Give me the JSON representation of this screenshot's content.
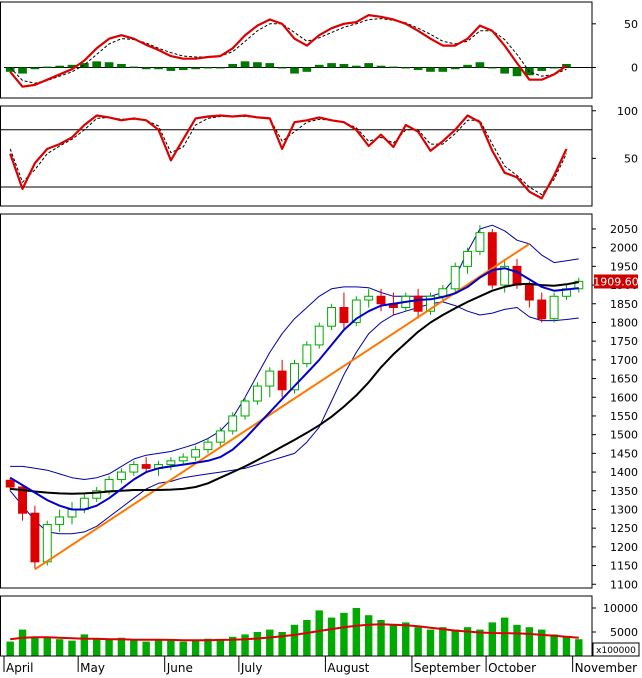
{
  "chart_data": [
    {
      "type": "line",
      "panel": "macd",
      "ylim": [
        -35,
        75
      ],
      "ticks": [
        "50",
        "0"
      ],
      "tick_values": [
        50,
        0
      ],
      "series": [
        {
          "role": "macd",
          "color": "#dd0000",
          "values": [
            -5,
            -22,
            -20,
            -14,
            -8,
            -2,
            8,
            22,
            33,
            37,
            33,
            26,
            20,
            13,
            10,
            10,
            12,
            13,
            22,
            37,
            48,
            55,
            50,
            33,
            25,
            37,
            45,
            50,
            52,
            60,
            58,
            55,
            50,
            42,
            33,
            25,
            25,
            33,
            48,
            42,
            25,
            5,
            -14,
            -14,
            -8,
            2
          ]
        },
        {
          "role": "signal",
          "color": "#000000",
          "values": [
            0,
            -15,
            -18,
            -15,
            -10,
            -5,
            3,
            15,
            27,
            33,
            32,
            28,
            22,
            17,
            13,
            12,
            12,
            13,
            18,
            30,
            42,
            50,
            50,
            40,
            30,
            34,
            40,
            46,
            50,
            55,
            56,
            54,
            51,
            45,
            38,
            30,
            27,
            30,
            42,
            42,
            32,
            15,
            -5,
            -10,
            -8,
            -2
          ]
        },
        {
          "role": "histogram",
          "color": "#007700",
          "values": [
            -5,
            -7,
            -2,
            1,
            2,
            3,
            5,
            7,
            6,
            4,
            1,
            -2,
            -2,
            -4,
            -3,
            -2,
            0,
            0,
            4,
            7,
            6,
            5,
            0,
            -7,
            -5,
            3,
            5,
            4,
            2,
            5,
            2,
            1,
            -1,
            -3,
            -5,
            -5,
            -2,
            3,
            6,
            0,
            -7,
            -10,
            -9,
            -4,
            0,
            4
          ]
        }
      ]
    },
    {
      "type": "line",
      "panel": "stochastic",
      "ylim": [
        0,
        105
      ],
      "ticks": [
        "100",
        "50"
      ],
      "tick_values": [
        100,
        50
      ],
      "reference_lines": [
        80,
        20
      ],
      "series": [
        {
          "role": "%K",
          "color": "#dd0000",
          "values": [
            55,
            18,
            45,
            60,
            65,
            72,
            85,
            95,
            93,
            90,
            92,
            90,
            80,
            48,
            70,
            92,
            94,
            95,
            94,
            95,
            93,
            92,
            60,
            88,
            90,
            93,
            90,
            88,
            80,
            63,
            75,
            62,
            85,
            78,
            58,
            68,
            80,
            95,
            88,
            58,
            35,
            30,
            15,
            8,
            32,
            60
          ]
        },
        {
          "role": "%D",
          "color": "#000000",
          "values": [
            60,
            25,
            38,
            55,
            63,
            70,
            80,
            92,
            93,
            91,
            91,
            90,
            84,
            56,
            62,
            85,
            92,
            94,
            94,
            94,
            93,
            92,
            68,
            78,
            88,
            91,
            90,
            88,
            82,
            68,
            72,
            66,
            80,
            80,
            65,
            65,
            76,
            90,
            90,
            65,
            42,
            32,
            20,
            12,
            28,
            55
          ]
        }
      ]
    },
    {
      "type": "candlestick",
      "panel": "price",
      "ylim": [
        1090,
        2090
      ],
      "ticks": [
        "2050",
        "2000",
        "1950",
        "1900",
        "1850",
        "1800",
        "1750",
        "1700",
        "1650",
        "1600",
        "1550",
        "1500",
        "1450",
        "1400",
        "1350",
        "1300",
        "1250",
        "1200",
        "1150",
        "1100"
      ],
      "tick_values": [
        2050,
        2000,
        1950,
        1900,
        1850,
        1800,
        1750,
        1700,
        1650,
        1600,
        1550,
        1500,
        1450,
        1400,
        1350,
        1300,
        1250,
        1200,
        1150,
        1100
      ],
      "last_price_label": "1909.60",
      "last_price": 1909.6,
      "x_labels": [
        "April",
        "May",
        "June",
        "July",
        "August",
        "September",
        "October",
        "November"
      ],
      "x_label_index": [
        0,
        6,
        13,
        19,
        26,
        33,
        39,
        46
      ],
      "candles": [
        [
          1378,
          1385,
          1350,
          1360
        ],
        [
          1360,
          1362,
          1270,
          1290
        ],
        [
          1290,
          1310,
          1140,
          1160
        ],
        [
          1160,
          1270,
          1150,
          1260
        ],
        [
          1260,
          1300,
          1240,
          1280
        ],
        [
          1280,
          1320,
          1260,
          1300
        ],
        [
          1300,
          1340,
          1290,
          1330
        ],
        [
          1330,
          1360,
          1320,
          1350
        ],
        [
          1350,
          1390,
          1340,
          1380
        ],
        [
          1380,
          1410,
          1370,
          1400
        ],
        [
          1400,
          1430,
          1390,
          1420
        ],
        [
          1420,
          1440,
          1400,
          1410
        ],
        [
          1410,
          1430,
          1390,
          1420
        ],
        [
          1420,
          1440,
          1405,
          1430
        ],
        [
          1430,
          1450,
          1420,
          1440
        ],
        [
          1440,
          1470,
          1430,
          1460
        ],
        [
          1460,
          1490,
          1450,
          1480
        ],
        [
          1480,
          1520,
          1470,
          1510
        ],
        [
          1510,
          1560,
          1500,
          1550
        ],
        [
          1550,
          1600,
          1540,
          1590
        ],
        [
          1590,
          1640,
          1580,
          1630
        ],
        [
          1630,
          1680,
          1600,
          1670
        ],
        [
          1670,
          1700,
          1600,
          1620
        ],
        [
          1620,
          1700,
          1610,
          1690
        ],
        [
          1690,
          1750,
          1680,
          1740
        ],
        [
          1740,
          1800,
          1730,
          1790
        ],
        [
          1790,
          1850,
          1780,
          1840
        ],
        [
          1840,
          1880,
          1780,
          1800
        ],
        [
          1800,
          1870,
          1790,
          1860
        ],
        [
          1860,
          1890,
          1840,
          1870
        ],
        [
          1870,
          1890,
          1830,
          1850
        ],
        [
          1850,
          1880,
          1820,
          1840
        ],
        [
          1840,
          1880,
          1830,
          1870
        ],
        [
          1870,
          1890,
          1810,
          1830
        ],
        [
          1830,
          1880,
          1820,
          1870
        ],
        [
          1870,
          1900,
          1860,
          1890
        ],
        [
          1890,
          1960,
          1880,
          1950
        ],
        [
          1950,
          2000,
          1930,
          1990
        ],
        [
          1990,
          2060,
          1980,
          2040
        ],
        [
          2040,
          2050,
          1890,
          1900
        ],
        [
          1900,
          1970,
          1880,
          1950
        ],
        [
          1950,
          1970,
          1890,
          1900
        ],
        [
          1900,
          1910,
          1840,
          1860
        ],
        [
          1860,
          1880,
          1800,
          1810
        ],
        [
          1810,
          1880,
          1800,
          1870
        ],
        [
          1870,
          1900,
          1860,
          1890
        ],
        [
          1890,
          1920,
          1880,
          1910
        ]
      ],
      "series": [
        {
          "role": "ma20",
          "color": "#0000cc",
          "values": [
            1385,
            1365,
            1345,
            1325,
            1310,
            1300,
            1300,
            1310,
            1330,
            1355,
            1380,
            1400,
            1410,
            1415,
            1420,
            1425,
            1430,
            1440,
            1460,
            1490,
            1525,
            1560,
            1595,
            1630,
            1665,
            1700,
            1740,
            1780,
            1810,
            1830,
            1845,
            1850,
            1855,
            1860,
            1862,
            1868,
            1878,
            1895,
            1920,
            1940,
            1945,
            1935,
            1915,
            1895,
            1885,
            1888,
            1892
          ]
        },
        {
          "role": "ma50",
          "color": "#000000",
          "values": [
            1355,
            1352,
            1348,
            1345,
            1343,
            1342,
            1343,
            1345,
            1348,
            1350,
            1352,
            1352,
            1352,
            1353,
            1355,
            1360,
            1370,
            1385,
            1400,
            1415,
            1432,
            1450,
            1468,
            1486,
            1505,
            1525,
            1548,
            1575,
            1605,
            1640,
            1680,
            1715,
            1745,
            1775,
            1800,
            1820,
            1838,
            1855,
            1870,
            1885,
            1895,
            1902,
            1903,
            1900,
            1898,
            1902,
            1908
          ]
        },
        {
          "role": "bollinger-upper",
          "color": "#0000aa",
          "values": [
            1415,
            1415,
            1410,
            1405,
            1395,
            1385,
            1380,
            1385,
            1395,
            1415,
            1435,
            1445,
            1450,
            1455,
            1465,
            1475,
            1490,
            1510,
            1545,
            1600,
            1660,
            1720,
            1770,
            1810,
            1840,
            1870,
            1890,
            1895,
            1895,
            1893,
            1880,
            1870,
            1870,
            1870,
            1870,
            1880,
            1920,
            1990,
            2050,
            2060,
            2045,
            2020,
            2010,
            1980,
            1960,
            1965,
            1970
          ]
        },
        {
          "role": "bollinger-lower",
          "color": "#0000aa",
          "values": [
            1350,
            1310,
            1270,
            1240,
            1235,
            1235,
            1240,
            1255,
            1280,
            1305,
            1330,
            1355,
            1370,
            1375,
            1385,
            1390,
            1395,
            1400,
            1405,
            1410,
            1420,
            1430,
            1440,
            1450,
            1480,
            1520,
            1590,
            1660,
            1720,
            1770,
            1800,
            1820,
            1830,
            1840,
            1850,
            1855,
            1845,
            1830,
            1820,
            1825,
            1835,
            1840,
            1815,
            1805,
            1805,
            1808,
            1812
          ]
        },
        {
          "role": "trendline",
          "color": "#ff7700",
          "points": [
            [
              2,
              1140
            ],
            [
              42,
              2010
            ]
          ]
        }
      ]
    },
    {
      "type": "bar",
      "panel": "volume",
      "ylim": [
        0,
        12500
      ],
      "ticks": [
        "10000",
        "5000"
      ],
      "tick_values": [
        10000,
        5000
      ],
      "unit_label": "x100000",
      "values": [
        3000,
        5500,
        4000,
        3800,
        3500,
        3200,
        4500,
        3500,
        3400,
        3800,
        3300,
        3000,
        3500,
        3300,
        3000,
        3200,
        3600,
        3500,
        4000,
        4500,
        5000,
        5500,
        5000,
        6500,
        7500,
        9500,
        8000,
        9000,
        10000,
        8500,
        7500,
        6500,
        7000,
        6000,
        5500,
        6000,
        5500,
        6000,
        5500,
        7000,
        8000,
        6500,
        6000,
        5500,
        4500,
        4000,
        3500
      ],
      "series": [
        {
          "role": "volume-ma",
          "color": "#dd0000",
          "values": [
            3500,
            3800,
            3900,
            3900,
            3800,
            3700,
            3600,
            3600,
            3500,
            3500,
            3400,
            3400,
            3400,
            3350,
            3300,
            3300,
            3300,
            3350,
            3400,
            3500,
            3650,
            3850,
            4100,
            4400,
            4800,
            5200,
            5600,
            6000,
            6300,
            6500,
            6600,
            6500,
            6400,
            6200,
            5900,
            5600,
            5300,
            5100,
            4900,
            4800,
            4750,
            4700,
            4600,
            4400,
            4200,
            4000,
            3800
          ]
        }
      ]
    }
  ]
}
